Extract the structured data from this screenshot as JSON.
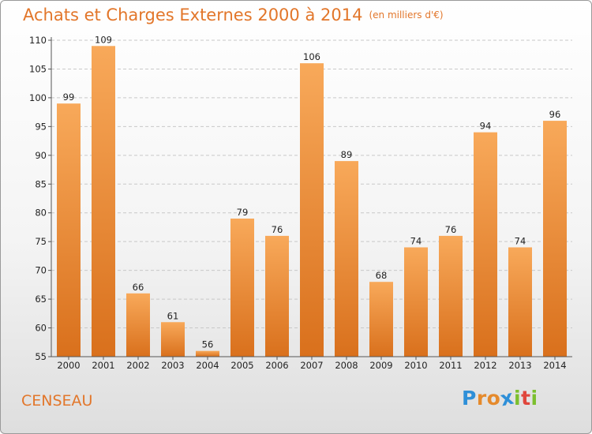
{
  "chart_data": {
    "type": "bar",
    "title": "Achats et Charges Externes 2000 à 2014",
    "subtitle": "(en milliers d'€)",
    "categories": [
      "2000",
      "2001",
      "2002",
      "2003",
      "2004",
      "2005",
      "2006",
      "2007",
      "2008",
      "2009",
      "2010",
      "2011",
      "2012",
      "2013",
      "2014"
    ],
    "values": [
      99,
      109,
      66,
      61,
      56,
      79,
      76,
      106,
      89,
      68,
      74,
      76,
      94,
      74,
      96
    ],
    "ylim": [
      55,
      110
    ],
    "yticks": [
      55,
      60,
      65,
      70,
      75,
      80,
      85,
      90,
      95,
      100,
      105,
      110
    ],
    "xlabel": "",
    "ylabel": "",
    "grid": "horizontal-dashed",
    "bar_color_light": "#f8a95a",
    "bar_color_dark": "#d9701c"
  },
  "footer": {
    "city": "CENSEAU",
    "logo": [
      "P",
      "r",
      "o",
      "x",
      "i",
      "t",
      "i"
    ]
  },
  "colors": {
    "accent": "#e2762a",
    "logo_letters": [
      "#2e8fd8",
      "#e58a2c",
      "#e58a2c",
      "#2e8fd8",
      "#7cbf2e",
      "#e0463c",
      "#7cbf2e"
    ]
  }
}
